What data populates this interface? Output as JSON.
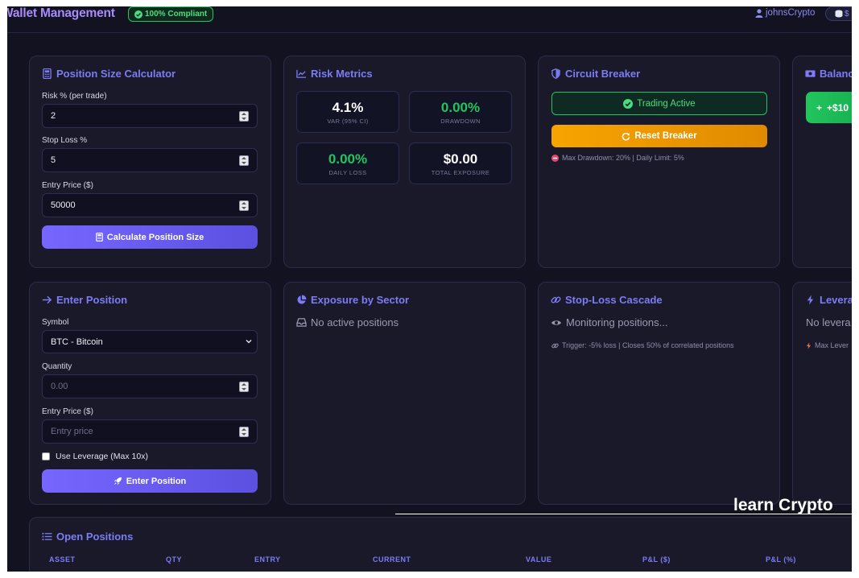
{
  "header": {
    "title": "Wallet Management",
    "compliance_badge": "100% Compliant",
    "username": "johnsCrypto",
    "balance_partial": "$"
  },
  "position_calc": {
    "title": "Position Size Calculator",
    "risk_label": "Risk % (per trade)",
    "risk_value": "2",
    "stop_label": "Stop Loss %",
    "stop_value": "5",
    "entry_label": "Entry Price ($)",
    "entry_value": "50000",
    "button": "Calculate Position Size"
  },
  "risk_metrics": {
    "title": "Risk Metrics",
    "var_value": "4.1%",
    "var_label": "VAR (95% CI)",
    "drawdown_value": "0.00%",
    "drawdown_label": "DRAWDOWN",
    "daily_loss_value": "0.00%",
    "daily_loss_label": "DAILY LOSS",
    "exposure_value": "$0.00",
    "exposure_label": "TOTAL EXPOSURE"
  },
  "circuit_breaker": {
    "title": "Circuit Breaker",
    "status": "Trading Active",
    "reset_button": "Reset Breaker",
    "limits": "Max Drawdown: 20% | Daily Limit: 5%"
  },
  "balance_card": {
    "title": "Balanc",
    "add_button": "+$10"
  },
  "enter_position": {
    "title": "Enter Position",
    "symbol_label": "Symbol",
    "symbol_value": "BTC - Bitcoin",
    "quantity_label": "Quantity",
    "quantity_placeholder": "0.00",
    "entry_label": "Entry Price ($)",
    "entry_placeholder": "Entry price",
    "leverage_label": "Use Leverage (Max 10x)",
    "button": "Enter Position"
  },
  "exposure": {
    "title": "Exposure by Sector",
    "empty": "No active positions"
  },
  "stoploss": {
    "title": "Stop-Loss Cascade",
    "status": "Monitoring positions...",
    "trigger": "Trigger: -5% loss | Closes 50% of correlated positions"
  },
  "leverage_card": {
    "title": "Levera",
    "empty": "No levera",
    "note": "Max Lever"
  },
  "open_positions": {
    "title": "Open Positions",
    "columns": [
      "ASSET",
      "QTY",
      "ENTRY",
      "CURRENT",
      "VALUE",
      "P&L ($)",
      "P&L (%)"
    ]
  },
  "watermark": "learn Crypto"
}
